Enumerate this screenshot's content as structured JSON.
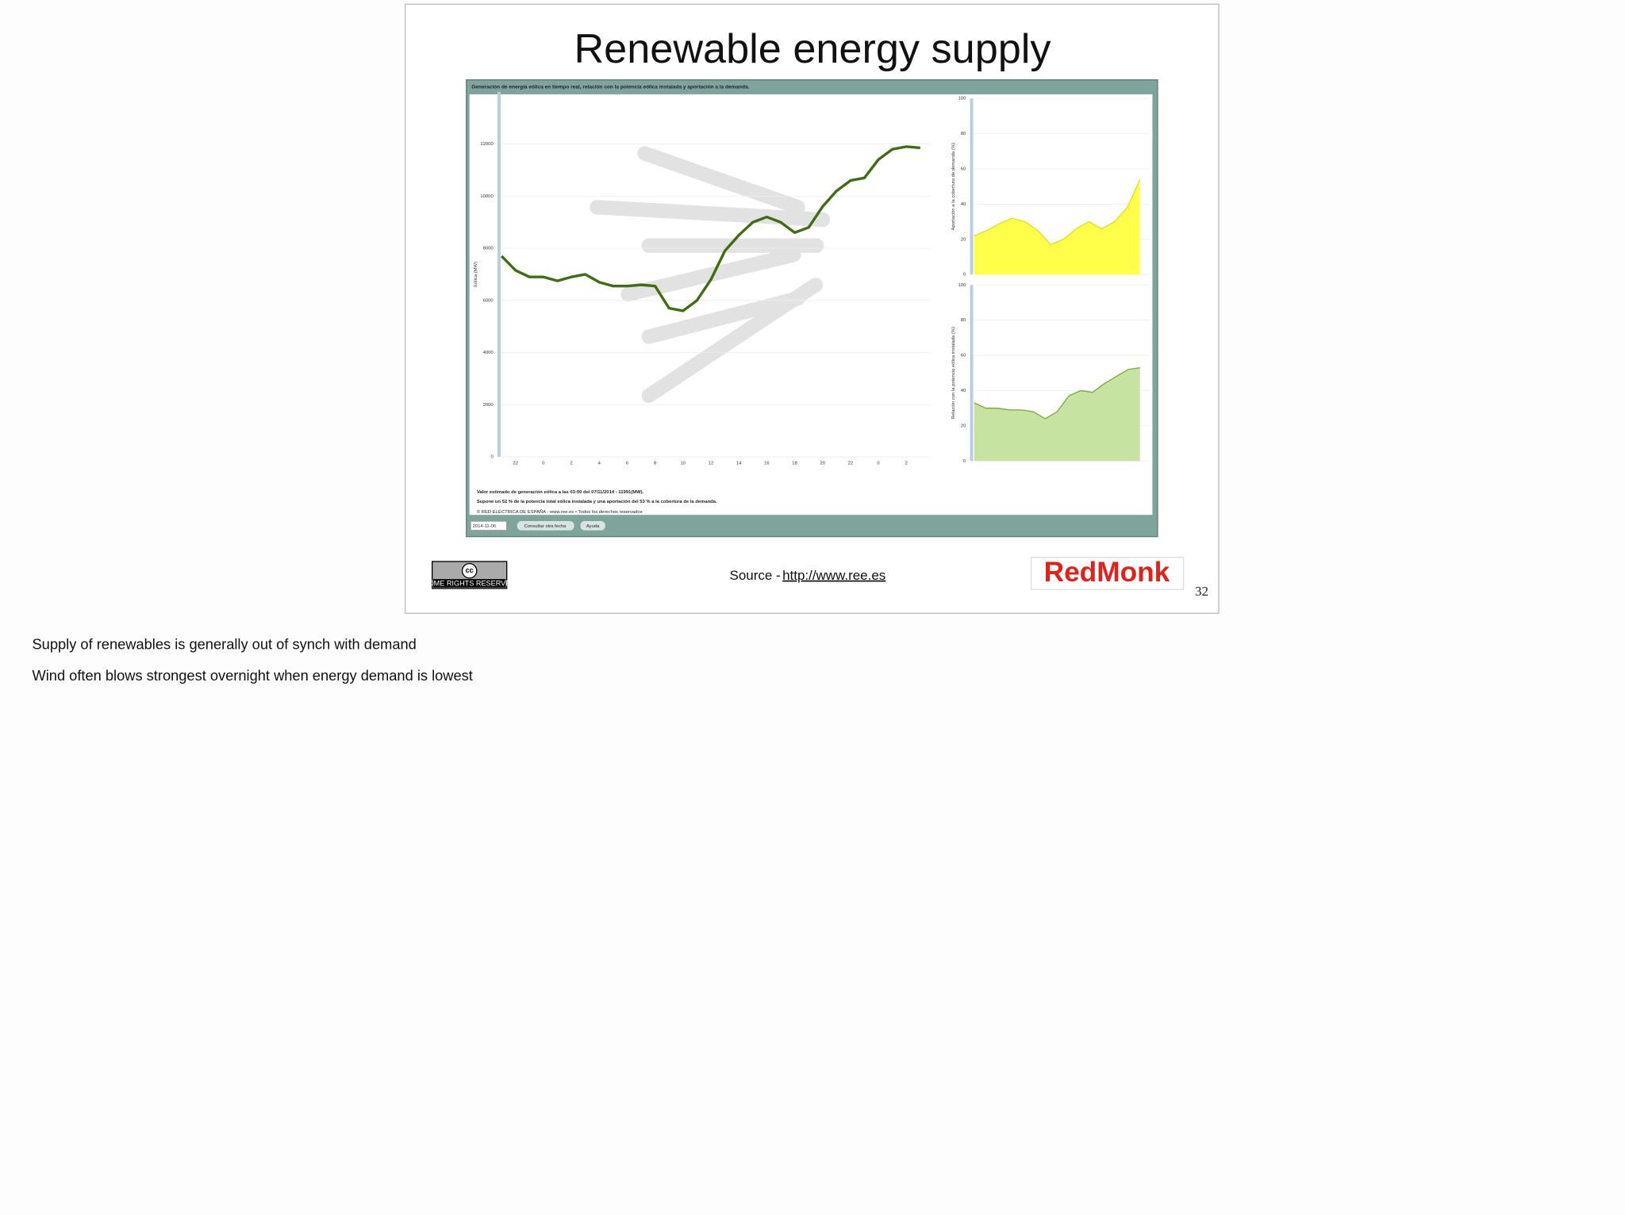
{
  "slide": {
    "title": "Renewable energy supply",
    "source_prefix": "Source - ",
    "source_link": "http://www.ree.es",
    "cc_symbol": "cc",
    "cc_text": "SOME RIGHTS RESERVED",
    "logo": "RedMonk",
    "page_number": "32"
  },
  "embed": {
    "header": "Generación de energía eólica en tiempo real, relación con la potencia eólica instalada y aportación a la demanda.",
    "footer": [
      "Valor estimado de generación eólica a las  03:00 del 07/11/2014  :  11991(MW).",
      "Supone un 52 % de la potencia total eólica instalada y una aportación del 53 % a la cobertura de la demanda.",
      "© RED ELÉCTRICA DE ESPAÑA - www.ree.es • Todos los derechos reservados"
    ],
    "date_input": "2014-11-06",
    "buttons": [
      "Consultar otra fecha",
      "Ayuda"
    ]
  },
  "chart_data": [
    {
      "type": "line",
      "y_label": "Eólica (MW)",
      "categories": [
        null,
        "22",
        null,
        "0",
        null,
        "2",
        null,
        "4",
        null,
        "6",
        null,
        "8",
        null,
        "10",
        null,
        "12",
        null,
        "14",
        null,
        "16",
        null,
        "18",
        null,
        "20",
        null,
        "22",
        null,
        "0",
        null,
        "2",
        null
      ],
      "series": [
        {
          "color": "#3f6e12",
          "values": [
            7700,
            7150,
            6900,
            6900,
            6750,
            6900,
            7000,
            6700,
            6550,
            6550,
            6600,
            6550,
            5700,
            5600,
            6000,
            6800,
            7900,
            8500,
            9000,
            9200,
            9000,
            8600,
            8800,
            9600,
            10200,
            10600,
            10700,
            11400,
            11800,
            11900,
            11850
          ]
        }
      ],
      "ylim": [
        0,
        14000
      ],
      "yticks": [
        0,
        2000,
        4000,
        6000,
        8000,
        10000,
        12000
      ],
      "grid": true
    },
    {
      "type": "area",
      "y_label": "Aportación a la cobertura de demanda (%)",
      "color": "#ffff4a",
      "line_color": "#dede20",
      "values": [
        22,
        25,
        29,
        32,
        30,
        25,
        17,
        20,
        26,
        30,
        26,
        30,
        38,
        54
      ],
      "ylim": [
        0,
        100
      ],
      "yticks": [
        0,
        20,
        40,
        60,
        80,
        100
      ],
      "grid": true
    },
    {
      "type": "area",
      "y_label": "Relación con la potencia eólica instalada (%)",
      "color": "#c7e3a2",
      "line_color": "#7aa83a",
      "values": [
        33,
        30,
        30,
        29,
        29,
        28,
        24,
        28,
        37,
        40,
        39,
        44,
        48,
        52,
        53
      ],
      "ylim": [
        0,
        100
      ],
      "yticks": [
        0,
        20,
        40,
        60,
        80,
        100
      ],
      "grid": true
    }
  ],
  "notes": [
    "Supply of renewables is generally out of synch with demand",
    "Wind often blows strongest overnight when energy demand is lowest"
  ]
}
